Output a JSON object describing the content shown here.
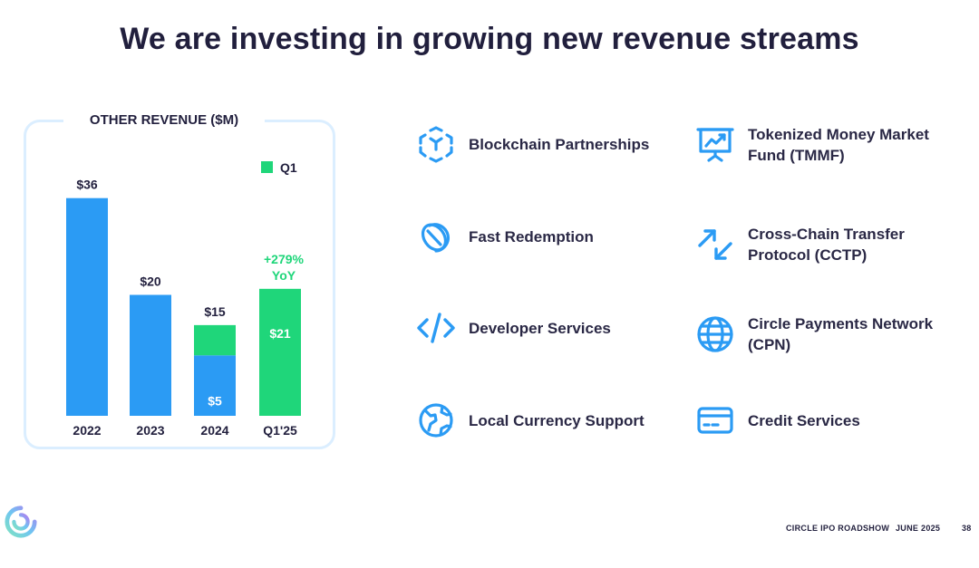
{
  "title": "We are investing in growing new revenue streams",
  "chart_data": {
    "type": "bar",
    "title": "OTHER REVENUE ($M)",
    "categories": [
      "2022",
      "2023",
      "2024",
      "Q1'25"
    ],
    "series": [
      {
        "name": "",
        "values": [
          36,
          20,
          10,
          0
        ],
        "color": "#2b9bf4"
      },
      {
        "name": "Q1",
        "values": [
          0,
          0,
          5,
          21
        ],
        "color": "#1fd67a"
      }
    ],
    "totals": [
      "$36",
      "$20",
      "$15",
      ""
    ],
    "segment_labels": {
      "2024_q1": "$5",
      "q125_q1": "$21"
    },
    "growth_annotation": {
      "line1": "+279%",
      "line2": "YoY"
    },
    "legend": {
      "label": "Q1",
      "position": "top-right"
    },
    "ylim": [
      0,
      40
    ],
    "grid": false
  },
  "features": [
    {
      "label": "Blockchain Partnerships",
      "icon": "blockchain-cube-icon"
    },
    {
      "label": "Tokenized Money Market Fund (TMMF)",
      "icon": "presentation-chart-icon"
    },
    {
      "label": "Fast Redemption",
      "icon": "coin-icon"
    },
    {
      "label": "Cross-Chain Transfer Protocol (CCTP)",
      "icon": "cross-arrows-icon"
    },
    {
      "label": "Developer Services",
      "icon": "code-icon"
    },
    {
      "label": "Circle Payments Network (CPN)",
      "icon": "globe-icon"
    },
    {
      "label": "Local Currency Support",
      "icon": "earth-icon"
    },
    {
      "label": "Credit Services",
      "icon": "credit-card-icon"
    }
  ],
  "footer": {
    "roadshow": "CIRCLE IPO ROADSHOW",
    "date": "JUNE 2025",
    "page": "38"
  },
  "colors": {
    "accent": "#2b9bf4",
    "q1": "#1fd67a",
    "text": "#211f3d"
  }
}
